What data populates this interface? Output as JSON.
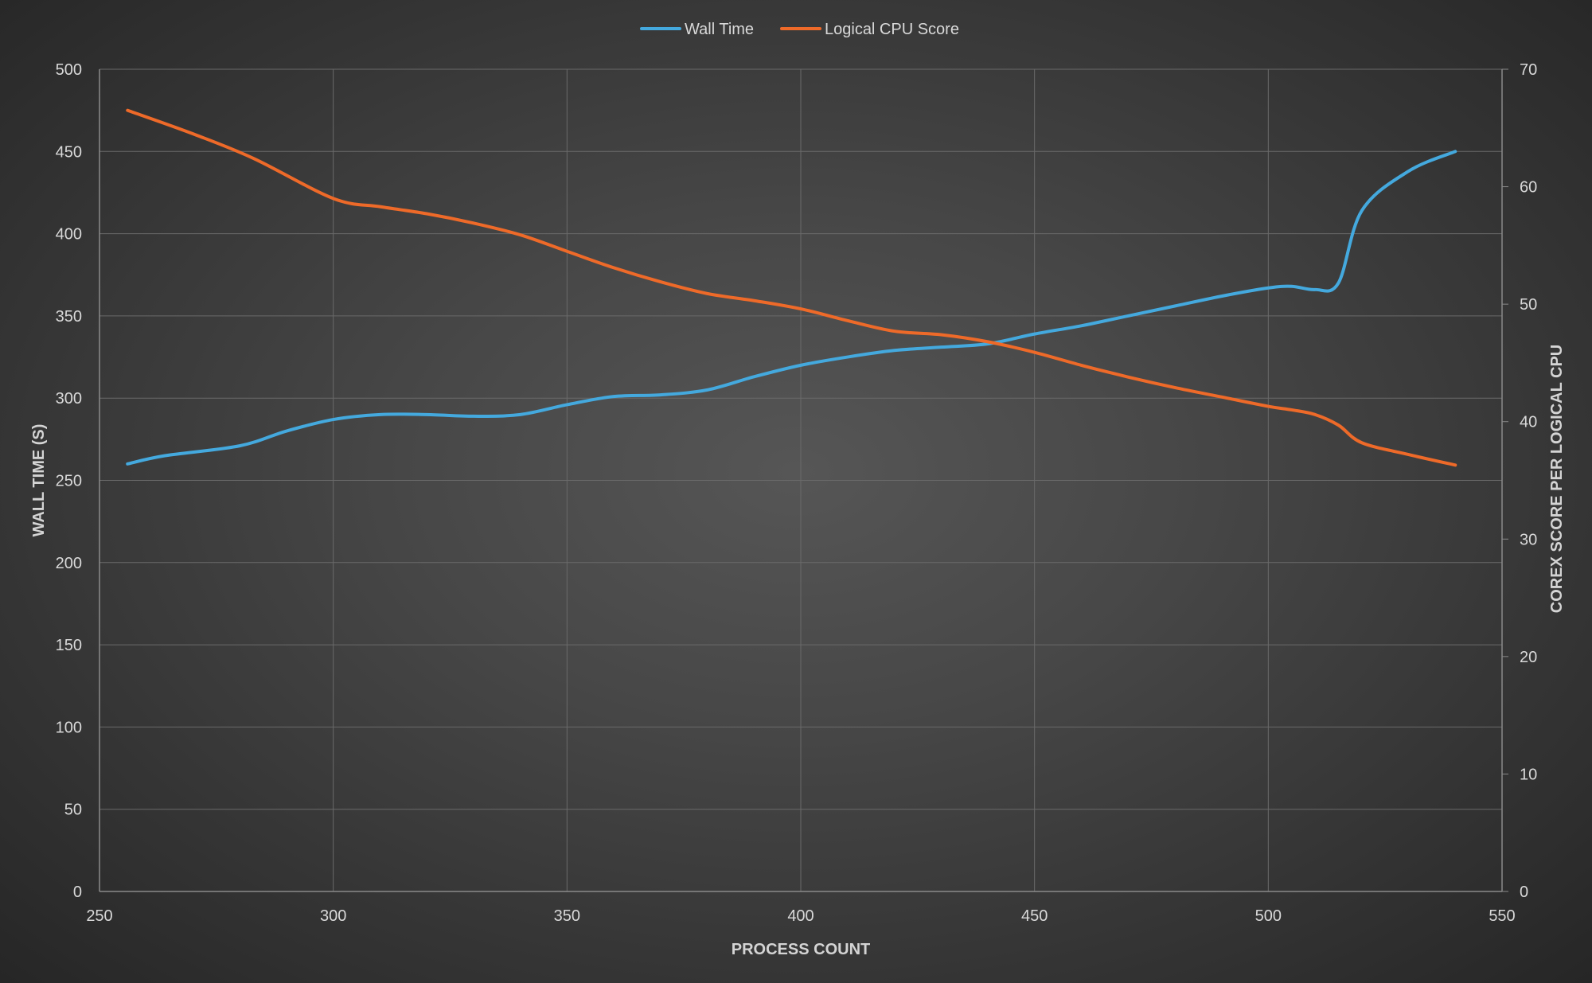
{
  "chart_data": {
    "type": "line",
    "title": "",
    "xlabel": "PROCESS COUNT",
    "ylabel": "WALL TIME (S)",
    "y2label": "COREX SCORE PER LOGICAL CPU",
    "xlim": [
      250,
      550
    ],
    "ylim": [
      0,
      500
    ],
    "y2lim": [
      0,
      70
    ],
    "x_ticks": [
      250,
      300,
      350,
      400,
      450,
      500,
      550
    ],
    "y_ticks": [
      0,
      50,
      100,
      150,
      200,
      250,
      300,
      350,
      400,
      450,
      500
    ],
    "y2_ticks": [
      0,
      10,
      20,
      30,
      40,
      50,
      60,
      70
    ],
    "grid": true,
    "legend_position": "top-center",
    "series": [
      {
        "name": "Wall Time",
        "axis": "left",
        "color": "#44a9de",
        "x": [
          256,
          264,
          280,
          290,
          300,
          310,
          320,
          330,
          340,
          350,
          360,
          370,
          380,
          390,
          400,
          410,
          420,
          430,
          440,
          450,
          460,
          470,
          480,
          490,
          500,
          505,
          510,
          515,
          520,
          530,
          540
        ],
        "y": [
          260,
          265,
          271,
          280,
          287,
          290,
          290,
          289,
          290,
          296,
          301,
          302,
          305,
          313,
          320,
          325,
          329,
          331,
          333,
          339,
          344,
          350,
          356,
          362,
          367,
          368,
          366,
          370,
          414,
          438,
          450
        ]
      },
      {
        "name": "Logical CPU Score",
        "axis": "right",
        "color": "#ee6a29",
        "x": [
          256,
          270,
          283,
          300,
          310,
          320,
          330,
          340,
          350,
          360,
          370,
          380,
          390,
          400,
          410,
          420,
          430,
          440,
          450,
          460,
          470,
          480,
          490,
          500,
          505,
          510,
          515,
          520,
          530,
          540
        ],
        "y": [
          66.5,
          64.5,
          62.4,
          59.0,
          58.3,
          57.7,
          56.9,
          55.9,
          54.5,
          53.1,
          51.9,
          50.9,
          50.3,
          49.6,
          48.6,
          47.7,
          47.4,
          46.8,
          45.9,
          44.8,
          43.8,
          42.9,
          42.1,
          41.3,
          41.0,
          40.6,
          39.7,
          38.2,
          37.2,
          36.3
        ]
      }
    ]
  }
}
